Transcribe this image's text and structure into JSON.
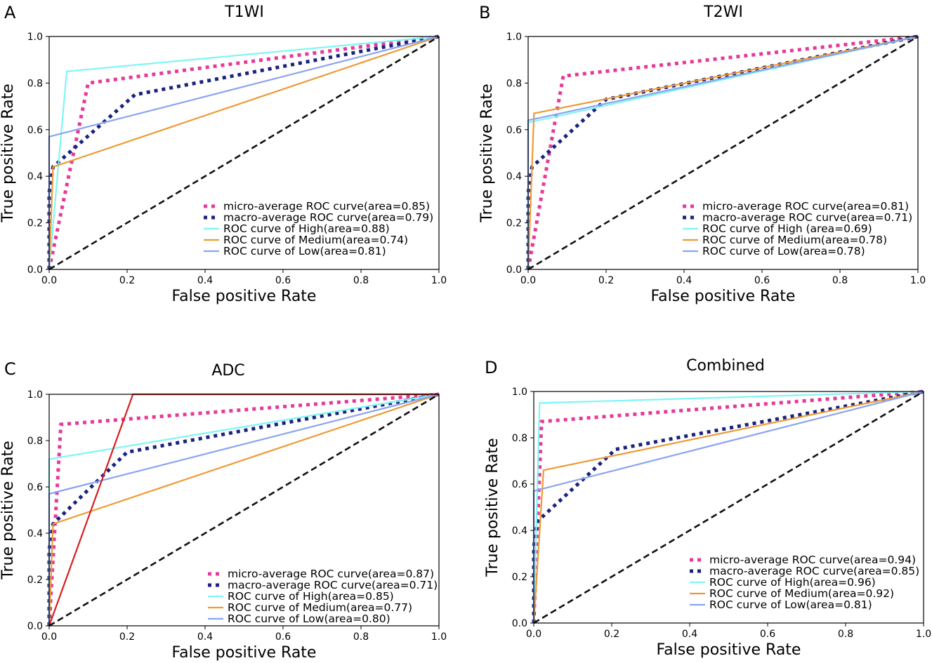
{
  "colors": {
    "micro": "#e6399b",
    "macro": "#1a237e",
    "high": "#7ff5f5",
    "medium": "#ee9a34",
    "low": "#8aa4ee",
    "extra": "#d81e1e",
    "diagonal": "#111111",
    "axes": "#000000"
  },
  "chart_data": [
    {
      "type": "line",
      "panel_label": "A",
      "title": "T1WI",
      "xlabel": "False positive Rate",
      "ylabel": "True positive Rate",
      "xlim": [
        0,
        1
      ],
      "ylim": [
        0,
        1
      ],
      "xticks": [
        "0.0",
        "0.2",
        "0.4",
        "0.6",
        "0.8",
        "1.0"
      ],
      "yticks": [
        "0.0",
        "0.2",
        "0.4",
        "0.6",
        "0.8",
        "1.0"
      ],
      "legend_position": "lower-right",
      "series": [
        {
          "key": "micro",
          "name": "micro-average ROC curve(area=0.85)",
          "style": "dotted",
          "x": [
            0,
            0.1,
            1
          ],
          "y": [
            0,
            0.8,
            1
          ]
        },
        {
          "key": "macro",
          "name": "macro-average ROC curve(area=0.79)",
          "style": "dotted",
          "x": [
            0,
            0,
            0.01,
            0.22,
            1
          ],
          "y": [
            0,
            0.33,
            0.44,
            0.75,
            1
          ]
        },
        {
          "key": "high",
          "name": "ROC curve of High(area=0.88)",
          "style": "solid",
          "x": [
            0,
            0.045,
            1
          ],
          "y": [
            0,
            0.85,
            1
          ]
        },
        {
          "key": "medium",
          "name": "ROC curve of Medium(area=0.74)",
          "style": "solid",
          "x": [
            0,
            0.01,
            1
          ],
          "y": [
            0,
            0.44,
            1
          ]
        },
        {
          "key": "low",
          "name": "ROC curve of Low(area=0.81)",
          "style": "solid",
          "x": [
            0,
            0,
            1
          ],
          "y": [
            0,
            0.57,
            1
          ]
        },
        {
          "key": "diagonal",
          "name": "",
          "style": "dashed",
          "x": [
            0,
            1
          ],
          "y": [
            0,
            1
          ]
        }
      ]
    },
    {
      "type": "line",
      "panel_label": "B",
      "title": "T2WI",
      "xlabel": "False positive Rate",
      "ylabel": "True positive Rate",
      "xlim": [
        0,
        1
      ],
      "ylim": [
        0,
        1
      ],
      "xticks": [
        "0.0",
        "0.2",
        "0.4",
        "0.6",
        "0.8",
        "1.0"
      ],
      "yticks": [
        "0.0",
        "0.2",
        "0.4",
        "0.6",
        "0.8",
        "1.0"
      ],
      "legend_position": "lower-right",
      "series": [
        {
          "key": "micro",
          "name": "micro-average ROC curve(area=0.81)",
          "style": "dotted",
          "x": [
            0,
            0.09,
            1
          ],
          "y": [
            0,
            0.83,
            1
          ]
        },
        {
          "key": "macro",
          "name": "macro-average ROC curve(area=0.71)",
          "style": "dotted",
          "x": [
            0,
            0,
            0.01,
            0.2,
            1
          ],
          "y": [
            0,
            0.33,
            0.44,
            0.73,
            1
          ]
        },
        {
          "key": "high",
          "name": "ROC curve of High (area=0.69)",
          "style": "solid",
          "x": [
            0,
            0,
            1
          ],
          "y": [
            0,
            0.63,
            1
          ]
        },
        {
          "key": "medium",
          "name": "ROC curve of Medium(area=0.78)",
          "style": "solid",
          "x": [
            0,
            0.015,
            1
          ],
          "y": [
            0,
            0.67,
            1
          ]
        },
        {
          "key": "low",
          "name": "ROC curve of Low(area=0.78)",
          "style": "solid",
          "x": [
            0,
            0,
            1
          ],
          "y": [
            0,
            0.64,
            1
          ]
        },
        {
          "key": "diagonal",
          "name": "",
          "style": "dashed",
          "x": [
            0,
            1
          ],
          "y": [
            0,
            1
          ]
        }
      ]
    },
    {
      "type": "line",
      "panel_label": "C",
      "title": "ADC",
      "xlabel": "False positive Rate",
      "ylabel": "True positive Rate",
      "xlim": [
        0,
        1
      ],
      "ylim": [
        0,
        1
      ],
      "xticks": [
        "0.0",
        "0.2",
        "0.4",
        "0.6",
        "0.8",
        "1.0"
      ],
      "yticks": [
        "0.0",
        "0.2",
        "0.4",
        "0.6",
        "0.8",
        "1.0"
      ],
      "legend_position": "lower-right",
      "series": [
        {
          "key": "micro",
          "name": "micro-average ROC curve(area=0.87)",
          "style": "dotted",
          "x": [
            0,
            0.03,
            1
          ],
          "y": [
            0,
            0.87,
            1
          ]
        },
        {
          "key": "macro",
          "name": "macro-average ROC curve(area=0.71)",
          "style": "dotted",
          "x": [
            0,
            0,
            0.01,
            0.2,
            1
          ],
          "y": [
            0,
            0.33,
            0.44,
            0.75,
            1
          ]
        },
        {
          "key": "high",
          "name": "ROC curve of High(area=0.85)",
          "style": "solid",
          "x": [
            0,
            0,
            1
          ],
          "y": [
            0,
            0.72,
            1
          ]
        },
        {
          "key": "medium",
          "name": "ROC curve of Medium(area=0.77)",
          "style": "solid",
          "x": [
            0,
            0.01,
            1
          ],
          "y": [
            0,
            0.44,
            1
          ]
        },
        {
          "key": "low",
          "name": "ROC curve of Low(area=0.80)",
          "style": "solid",
          "x": [
            0,
            0,
            1
          ],
          "y": [
            0,
            0.57,
            1
          ]
        },
        {
          "key": "extra",
          "name": "",
          "style": "solid",
          "x": [
            0,
            0.215,
            1
          ],
          "y": [
            0,
            1,
            1
          ]
        },
        {
          "key": "diagonal",
          "name": "",
          "style": "dashed",
          "x": [
            0,
            1
          ],
          "y": [
            0,
            1
          ]
        }
      ]
    },
    {
      "type": "line",
      "panel_label": "D",
      "title": "Combined",
      "xlabel": "False positive Rate",
      "ylabel": "True positive Rate",
      "xlim": [
        0,
        1
      ],
      "ylim": [
        0,
        1
      ],
      "xticks": [
        "0.0",
        "0.2",
        "0.4",
        "0.6",
        "0.8",
        "1.0"
      ],
      "yticks": [
        "0.0",
        "0.2",
        "0.4",
        "0.6",
        "0.8",
        "1.0"
      ],
      "legend_position": "lower-right",
      "series": [
        {
          "key": "micro",
          "name": "micro-average ROC curve(area=0.94)",
          "style": "dotted",
          "x": [
            0,
            0.02,
            1
          ],
          "y": [
            0,
            0.87,
            1
          ]
        },
        {
          "key": "macro",
          "name": "macro-average ROC curve(area=0.85)",
          "style": "dotted",
          "x": [
            0,
            0,
            0.01,
            0.21,
            1
          ],
          "y": [
            0,
            0.33,
            0.44,
            0.75,
            1
          ]
        },
        {
          "key": "high",
          "name": "ROC curve of High(area=0.96)",
          "style": "solid",
          "x": [
            0,
            0.015,
            1
          ],
          "y": [
            0,
            0.95,
            1
          ]
        },
        {
          "key": "medium",
          "name": "ROC curve of Medium(area=0.92)",
          "style": "solid",
          "x": [
            0,
            0.025,
            1
          ],
          "y": [
            0,
            0.66,
            1
          ]
        },
        {
          "key": "low",
          "name": "ROC curve of Low(area=0.81)",
          "style": "solid",
          "x": [
            0,
            0,
            1
          ],
          "y": [
            0,
            0.57,
            1
          ]
        },
        {
          "key": "diagonal",
          "name": "",
          "style": "dashed",
          "x": [
            0,
            1
          ],
          "y": [
            0,
            1
          ]
        }
      ]
    }
  ]
}
